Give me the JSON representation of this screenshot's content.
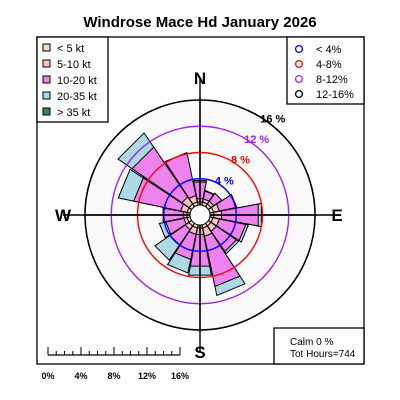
{
  "title": "Windrose  Mace Hd January 2026",
  "chart_data": {
    "type": "windrose",
    "title": "Windrose  Mace Hd January 2026",
    "directions": [
      "N",
      "NNE",
      "NE",
      "ENE",
      "E",
      "ESE",
      "SE",
      "SSE",
      "S",
      "SSW",
      "SW",
      "WSW",
      "W",
      "WNW",
      "NW",
      "NNW"
    ],
    "compass_labels": [
      "N",
      "E",
      "S",
      "W"
    ],
    "speed_bins": [
      {
        "label": "< 5  kt",
        "color": "#f5deb3"
      },
      {
        "label": "5-10 kt",
        "color": "#ffc0cb"
      },
      {
        "label": "10-20 kt",
        "color": "#ee82ee"
      },
      {
        "label": "20-35 kt",
        "color": "#add8e6"
      },
      {
        "label": "> 35 kt",
        "color": "#2e8b57"
      }
    ],
    "frequency_rings": [
      {
        "value": 4,
        "label": "4 %",
        "color": "#0000ff"
      },
      {
        "value": 8,
        "label": "8 %",
        "color": "#ff0000"
      },
      {
        "value": 12,
        "label": "12 %",
        "color": "#a020f0"
      },
      {
        "value": 16,
        "label": "16 %",
        "color": "#000000"
      }
    ],
    "ring_legend": [
      {
        "label": "< 4%",
        "color": "#0000ff"
      },
      {
        "label": "4-8%",
        "color": "#ff0000"
      },
      {
        "label": "8-12%",
        "color": "#a020f0"
      },
      {
        "label": "12-16%",
        "color": "#000000"
      }
    ],
    "cumulative_percent": [
      [
        0.5,
        1.0,
        3.6,
        3.8,
        3.8
      ],
      [
        0.5,
        1.0,
        2.2,
        2.3,
        2.3
      ],
      [
        0.5,
        1.0,
        2.5,
        2.5,
        2.5
      ],
      [
        0.6,
        1.5,
        4.2,
        4.2,
        4.2
      ],
      [
        0.6,
        1.8,
        7.5,
        8.0,
        8.0
      ],
      [
        0.5,
        1.5,
        5.6,
        6.0,
        6.0
      ],
      [
        0.5,
        1.5,
        5.2,
        5.6,
        5.6
      ],
      [
        0.5,
        1.8,
        9.6,
        11.0,
        11.0
      ],
      [
        0.5,
        1.5,
        6.4,
        7.8,
        7.8
      ],
      [
        0.5,
        1.5,
        5.4,
        7.5,
        7.5
      ],
      [
        0.5,
        1.2,
        4.0,
        6.8,
        6.8
      ],
      [
        0.5,
        1.0,
        3.8,
        4.8,
        4.8
      ],
      [
        0.5,
        1.0,
        4.2,
        4.2,
        4.2
      ],
      [
        0.5,
        1.5,
        8.8,
        11.2,
        11.2
      ],
      [
        0.5,
        1.8,
        11.0,
        13.6,
        13.6
      ],
      [
        0.5,
        1.5,
        8.2,
        8.2,
        8.2
      ]
    ],
    "radius_max_percent": 16,
    "scale_bar": {
      "ticks": [
        0,
        4,
        8,
        12,
        16
      ],
      "labels": [
        "0%",
        "4%",
        "8%",
        "12%",
        "16%"
      ]
    },
    "calm_text": "Calm 0 %",
    "hours_text": "Tot Hours=744"
  },
  "colors": {
    "wedge_outline": "#000000",
    "spoke_color": "#000000",
    "inner_disc": "#fafafa"
  }
}
